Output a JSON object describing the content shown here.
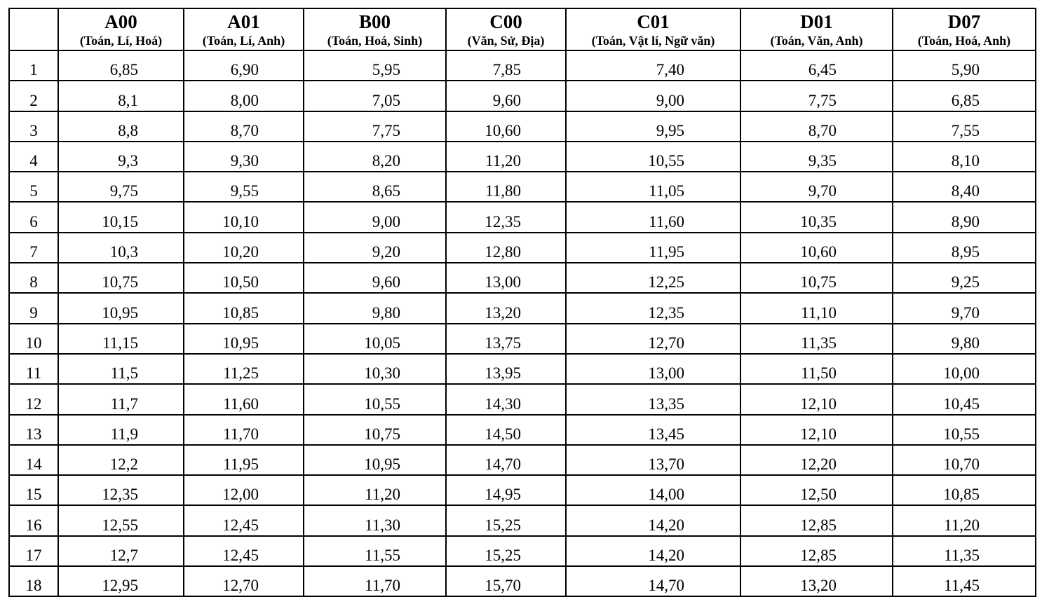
{
  "table": {
    "header": [
      {
        "code": "A00",
        "subjects": "(Toán, Lí, Hoá)"
      },
      {
        "code": "A01",
        "subjects": "(Toán, Lí, Anh)"
      },
      {
        "code": "B00",
        "subjects": "(Toán, Hoá, Sinh)"
      },
      {
        "code": "C00",
        "subjects": "(Văn, Sử, Địa)"
      },
      {
        "code": "C01",
        "subjects": "(Toán, Vật lí, Ngữ văn)"
      },
      {
        "code": "D01",
        "subjects": "(Toán, Văn, Anh)"
      },
      {
        "code": "D07",
        "subjects": "(Toán, Hoá, Anh)"
      }
    ],
    "rows": [
      [
        "1",
        "6,85",
        "6,90",
        "5,95",
        "7,85",
        "7,40",
        "6,45",
        "5,90"
      ],
      [
        "2",
        "8,1",
        "8,00",
        "7,05",
        "9,60",
        "9,00",
        "7,75",
        "6,85"
      ],
      [
        "3",
        "8,8",
        "8,70",
        "7,75",
        "10,60",
        "9,95",
        "8,70",
        "7,55"
      ],
      [
        "4",
        "9,3",
        "9,30",
        "8,20",
        "11,20",
        "10,55",
        "9,35",
        "8,10"
      ],
      [
        "5",
        "9,75",
        "9,55",
        "8,65",
        "11,80",
        "11,05",
        "9,70",
        "8,40"
      ],
      [
        "6",
        "10,15",
        "10,10",
        "9,00",
        "12,35",
        "11,60",
        "10,35",
        "8,90"
      ],
      [
        "7",
        "10,3",
        "10,20",
        "9,20",
        "12,80",
        "11,95",
        "10,60",
        "8,95"
      ],
      [
        "8",
        "10,75",
        "10,50",
        "9,60",
        "13,00",
        "12,25",
        "10,75",
        "9,25"
      ],
      [
        "9",
        "10,95",
        "10,85",
        "9,80",
        "13,20",
        "12,35",
        "11,10",
        "9,70"
      ],
      [
        "10",
        "11,15",
        "10,95",
        "10,05",
        "13,75",
        "12,70",
        "11,35",
        "9,80"
      ],
      [
        "11",
        "11,5",
        "11,25",
        "10,30",
        "13,95",
        "13,00",
        "11,50",
        "10,00"
      ],
      [
        "12",
        "11,7",
        "11,60",
        "10,55",
        "14,30",
        "13,35",
        "12,10",
        "10,45"
      ],
      [
        "13",
        "11,9",
        "11,70",
        "10,75",
        "14,50",
        "13,45",
        "12,10",
        "10,55"
      ],
      [
        "14",
        "12,2",
        "11,95",
        "10,95",
        "14,70",
        "13,70",
        "12,20",
        "10,70"
      ],
      [
        "15",
        "12,35",
        "12,00",
        "11,20",
        "14,95",
        "14,00",
        "12,50",
        "10,85"
      ],
      [
        "16",
        "12,55",
        "12,45",
        "11,30",
        "15,25",
        "14,20",
        "12,85",
        "11,20"
      ],
      [
        "17",
        "12,7",
        "12,45",
        "11,55",
        "15,25",
        "14,20",
        "12,85",
        "11,35"
      ],
      [
        "18",
        "12,95",
        "12,70",
        "11,70",
        "15,70",
        "14,70",
        "13,20",
        "11,45"
      ]
    ]
  }
}
